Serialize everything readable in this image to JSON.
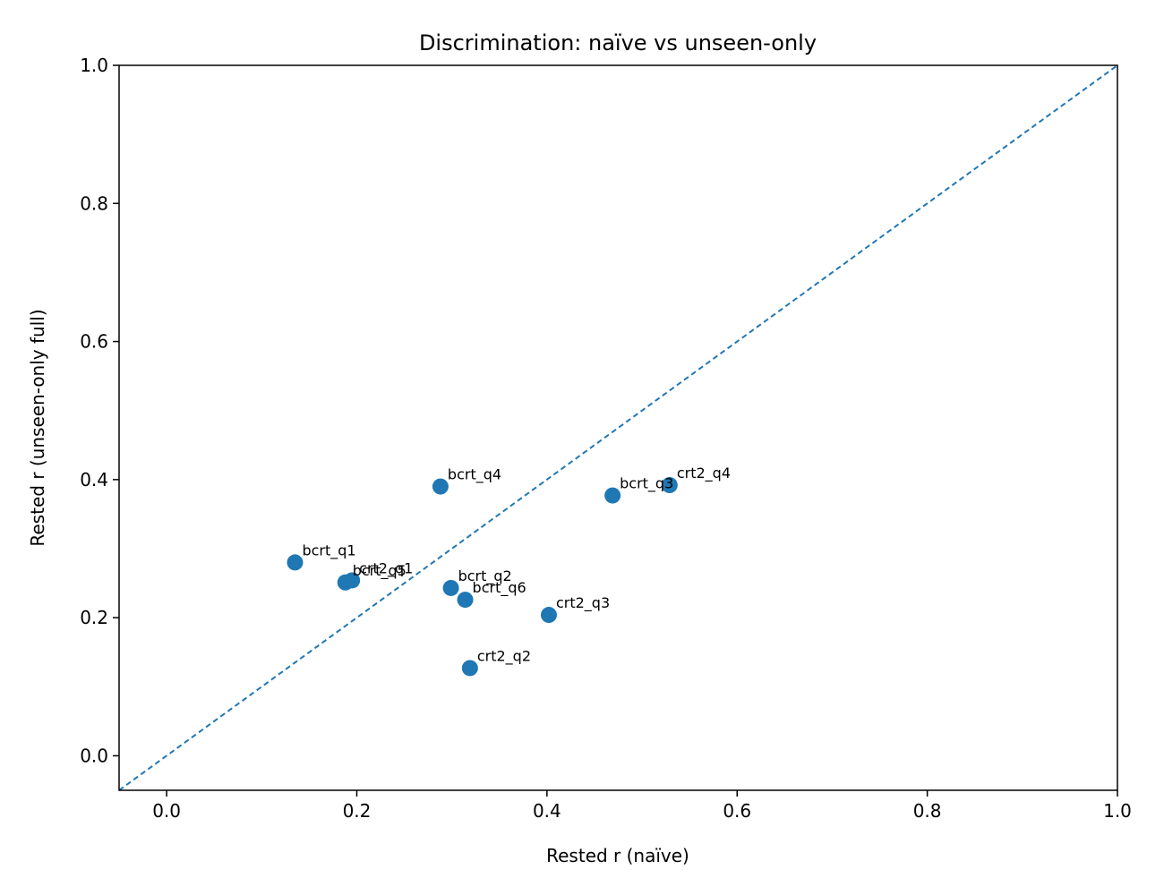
{
  "chart_data": {
    "type": "scatter",
    "title": "Discrimination: naïve vs unseen-only",
    "xlabel": "Rested r (naïve)",
    "ylabel": "Rested r (unseen-only full)",
    "xlim": [
      -0.05,
      1.0
    ],
    "ylim": [
      -0.05,
      1.0
    ],
    "xticks": [
      "0.0",
      "0.2",
      "0.4",
      "0.6",
      "0.8",
      "1.0"
    ],
    "yticks": [
      "0.0",
      "0.2",
      "0.4",
      "0.6",
      "0.8",
      "1.0"
    ],
    "grid": false,
    "point_color": "#1f77b4",
    "reference_line": {
      "style": "dashed",
      "color": "#1f77b4",
      "from": [
        -0.05,
        -0.05
      ],
      "to": [
        1.0,
        1.0
      ]
    },
    "points": [
      {
        "label": "bcrt_q1",
        "x": 0.135,
        "y": 0.28
      },
      {
        "label": "bcrt_q5",
        "x": 0.188,
        "y": 0.251
      },
      {
        "label": "crt2_q1",
        "x": 0.195,
        "y": 0.254
      },
      {
        "label": "bcrt_q4",
        "x": 0.288,
        "y": 0.39
      },
      {
        "label": "bcrt_q2",
        "x": 0.299,
        "y": 0.243
      },
      {
        "label": "bcrt_q6",
        "x": 0.314,
        "y": 0.226
      },
      {
        "label": "crt2_q2",
        "x": 0.319,
        "y": 0.127
      },
      {
        "label": "crt2_q3",
        "x": 0.402,
        "y": 0.204
      },
      {
        "label": "bcrt_q3",
        "x": 0.469,
        "y": 0.377
      },
      {
        "label": "crt2_q4",
        "x": 0.529,
        "y": 0.392
      }
    ]
  }
}
